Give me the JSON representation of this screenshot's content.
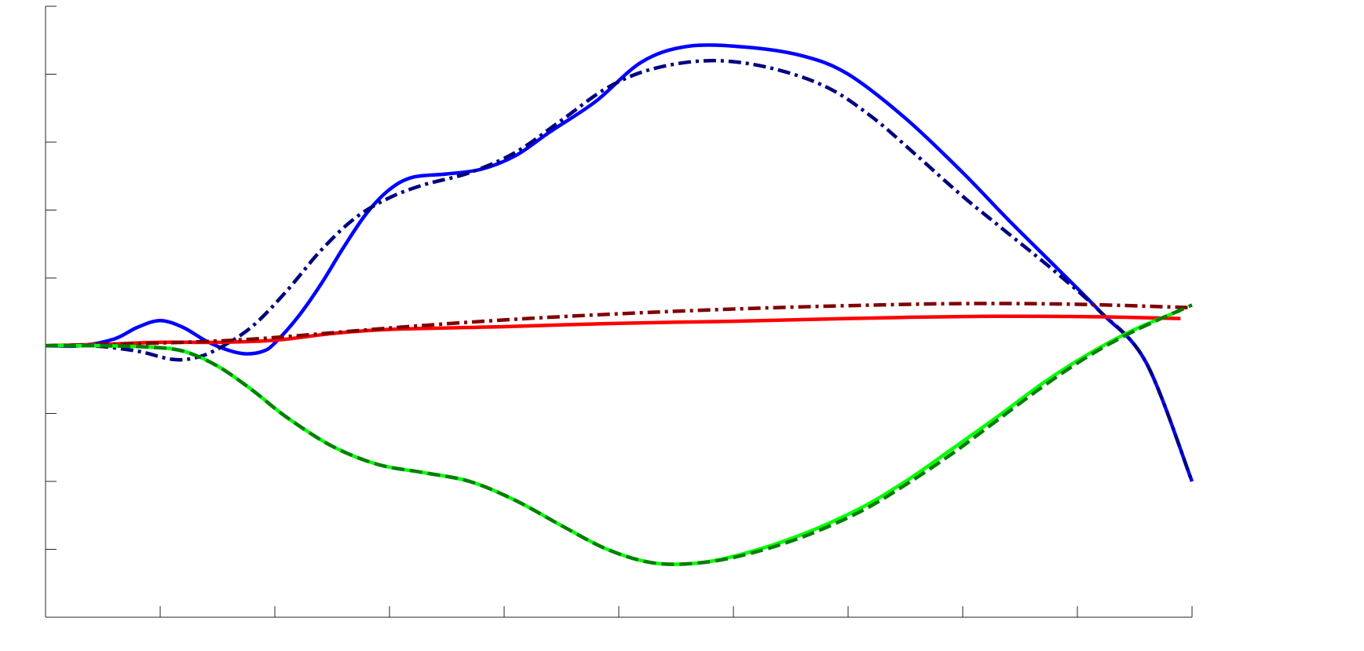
{
  "chart_data": {
    "type": "line",
    "title": "",
    "xlabel": "",
    "ylabel": "",
    "xlim": [
      0,
      10
    ],
    "ylim": [
      -4,
      5
    ],
    "grid": false,
    "legend": "none",
    "x_ticks": [
      0,
      1,
      2,
      3,
      4,
      5,
      6,
      7,
      8,
      9,
      10
    ],
    "y_ticks": [
      -4,
      -3,
      -2,
      -1,
      0,
      1,
      2,
      3,
      4,
      5
    ],
    "series": [
      {
        "color": "#0000ff",
        "style": "solid",
        "width": 4.5,
        "points": [
          [
            0,
            0
          ],
          [
            0.3,
            0.0
          ],
          [
            0.6,
            0.1
          ],
          [
            0.8,
            0.27
          ],
          [
            1.0,
            0.37
          ],
          [
            1.2,
            0.27
          ],
          [
            1.4,
            0.07
          ],
          [
            1.6,
            -0.07
          ],
          [
            1.75,
            -0.12
          ],
          [
            1.9,
            -0.08
          ],
          [
            2.0,
            0.04
          ],
          [
            2.2,
            0.42
          ],
          [
            2.4,
            0.9
          ],
          [
            2.6,
            1.45
          ],
          [
            2.8,
            1.95
          ],
          [
            3.0,
            2.3
          ],
          [
            3.2,
            2.48
          ],
          [
            3.5,
            2.53
          ],
          [
            3.8,
            2.6
          ],
          [
            4.1,
            2.8
          ],
          [
            4.4,
            3.15
          ],
          [
            4.8,
            3.6
          ],
          [
            5.2,
            4.18
          ],
          [
            5.6,
            4.41
          ],
          [
            6.1,
            4.4
          ],
          [
            6.6,
            4.27
          ],
          [
            7.0,
            4.0
          ],
          [
            7.5,
            3.35
          ],
          [
            8.0,
            2.55
          ],
          [
            8.4,
            1.85
          ],
          [
            8.8,
            1.18
          ],
          [
            9.2,
            0.5
          ],
          [
            9.6,
            -0.25
          ],
          [
            10.0,
            -2.0
          ]
        ]
      },
      {
        "color": "#00007f",
        "style": "dashdot",
        "width": 4.5,
        "points": [
          [
            0,
            0
          ],
          [
            0.4,
            0.0
          ],
          [
            0.8,
            -0.08
          ],
          [
            1.1,
            -0.2
          ],
          [
            1.3,
            -0.18
          ],
          [
            1.5,
            -0.05
          ],
          [
            1.8,
            0.28
          ],
          [
            2.1,
            0.8
          ],
          [
            2.4,
            1.4
          ],
          [
            2.7,
            1.88
          ],
          [
            3.0,
            2.18
          ],
          [
            3.3,
            2.37
          ],
          [
            3.7,
            2.55
          ],
          [
            4.1,
            2.85
          ],
          [
            4.5,
            3.32
          ],
          [
            4.9,
            3.8
          ],
          [
            5.3,
            4.08
          ],
          [
            5.8,
            4.2
          ],
          [
            6.3,
            4.1
          ],
          [
            6.8,
            3.82
          ],
          [
            7.2,
            3.38
          ],
          [
            7.6,
            2.8
          ],
          [
            8.0,
            2.2
          ],
          [
            8.4,
            1.65
          ],
          [
            8.8,
            1.1
          ],
          [
            9.2,
            0.5
          ],
          [
            9.6,
            -0.25
          ],
          [
            10.0,
            -2.0
          ]
        ]
      },
      {
        "color": "#ff0000",
        "style": "solid",
        "width": 4.5,
        "points": [
          [
            0,
            0
          ],
          [
            0.5,
            0.02
          ],
          [
            1.0,
            0.05
          ],
          [
            1.5,
            0.05
          ],
          [
            2.0,
            0.08
          ],
          [
            2.5,
            0.18
          ],
          [
            3.0,
            0.24
          ],
          [
            4.0,
            0.28
          ],
          [
            5.0,
            0.33
          ],
          [
            6.0,
            0.36
          ],
          [
            7.0,
            0.4
          ],
          [
            8.0,
            0.43
          ],
          [
            9.0,
            0.43
          ],
          [
            9.9,
            0.4
          ]
        ]
      },
      {
        "color": "#7f0000",
        "style": "dashdot",
        "width": 4.5,
        "points": [
          [
            0,
            0
          ],
          [
            0.5,
            0.02
          ],
          [
            1.0,
            0.04
          ],
          [
            1.5,
            0.07
          ],
          [
            2.0,
            0.12
          ],
          [
            3.0,
            0.26
          ],
          [
            4.0,
            0.38
          ],
          [
            5.0,
            0.47
          ],
          [
            6.0,
            0.54
          ],
          [
            7.0,
            0.59
          ],
          [
            8.0,
            0.62
          ],
          [
            9.0,
            0.61
          ],
          [
            10.0,
            0.56
          ]
        ]
      },
      {
        "color": "#00ff00",
        "style": "solid",
        "width": 4.5,
        "points": [
          [
            0,
            0
          ],
          [
            0.5,
            0.0
          ],
          [
            0.9,
            -0.02
          ],
          [
            1.2,
            -0.08
          ],
          [
            1.5,
            -0.3
          ],
          [
            1.8,
            -0.65
          ],
          [
            2.1,
            -1.05
          ],
          [
            2.5,
            -1.48
          ],
          [
            2.9,
            -1.75
          ],
          [
            3.3,
            -1.87
          ],
          [
            3.7,
            -2.0
          ],
          [
            4.1,
            -2.28
          ],
          [
            4.5,
            -2.65
          ],
          [
            4.9,
            -3.0
          ],
          [
            5.3,
            -3.2
          ],
          [
            5.7,
            -3.2
          ],
          [
            6.1,
            -3.06
          ],
          [
            6.6,
            -2.78
          ],
          [
            7.1,
            -2.4
          ],
          [
            7.5,
            -2.0
          ],
          [
            7.9,
            -1.53
          ],
          [
            8.3,
            -1.05
          ],
          [
            8.7,
            -0.55
          ],
          [
            9.1,
            -0.12
          ],
          [
            9.5,
            0.24
          ],
          [
            9.9,
            0.52
          ]
        ]
      },
      {
        "color": "#007f00",
        "style": "dashed",
        "width": 4.5,
        "points": [
          [
            0,
            0
          ],
          [
            0.5,
            0.0
          ],
          [
            0.9,
            -0.02
          ],
          [
            1.2,
            -0.08
          ],
          [
            1.5,
            -0.3
          ],
          [
            1.8,
            -0.65
          ],
          [
            2.1,
            -1.05
          ],
          [
            2.5,
            -1.48
          ],
          [
            2.9,
            -1.75
          ],
          [
            3.3,
            -1.87
          ],
          [
            3.7,
            -2.0
          ],
          [
            4.1,
            -2.28
          ],
          [
            4.5,
            -2.65
          ],
          [
            4.9,
            -3.0
          ],
          [
            5.3,
            -3.2
          ],
          [
            5.7,
            -3.2
          ],
          [
            6.1,
            -3.08
          ],
          [
            6.6,
            -2.82
          ],
          [
            7.1,
            -2.45
          ],
          [
            7.5,
            -2.05
          ],
          [
            7.9,
            -1.6
          ],
          [
            8.3,
            -1.1
          ],
          [
            8.7,
            -0.6
          ],
          [
            9.1,
            -0.15
          ],
          [
            9.5,
            0.22
          ],
          [
            10.0,
            0.6
          ]
        ]
      }
    ]
  }
}
